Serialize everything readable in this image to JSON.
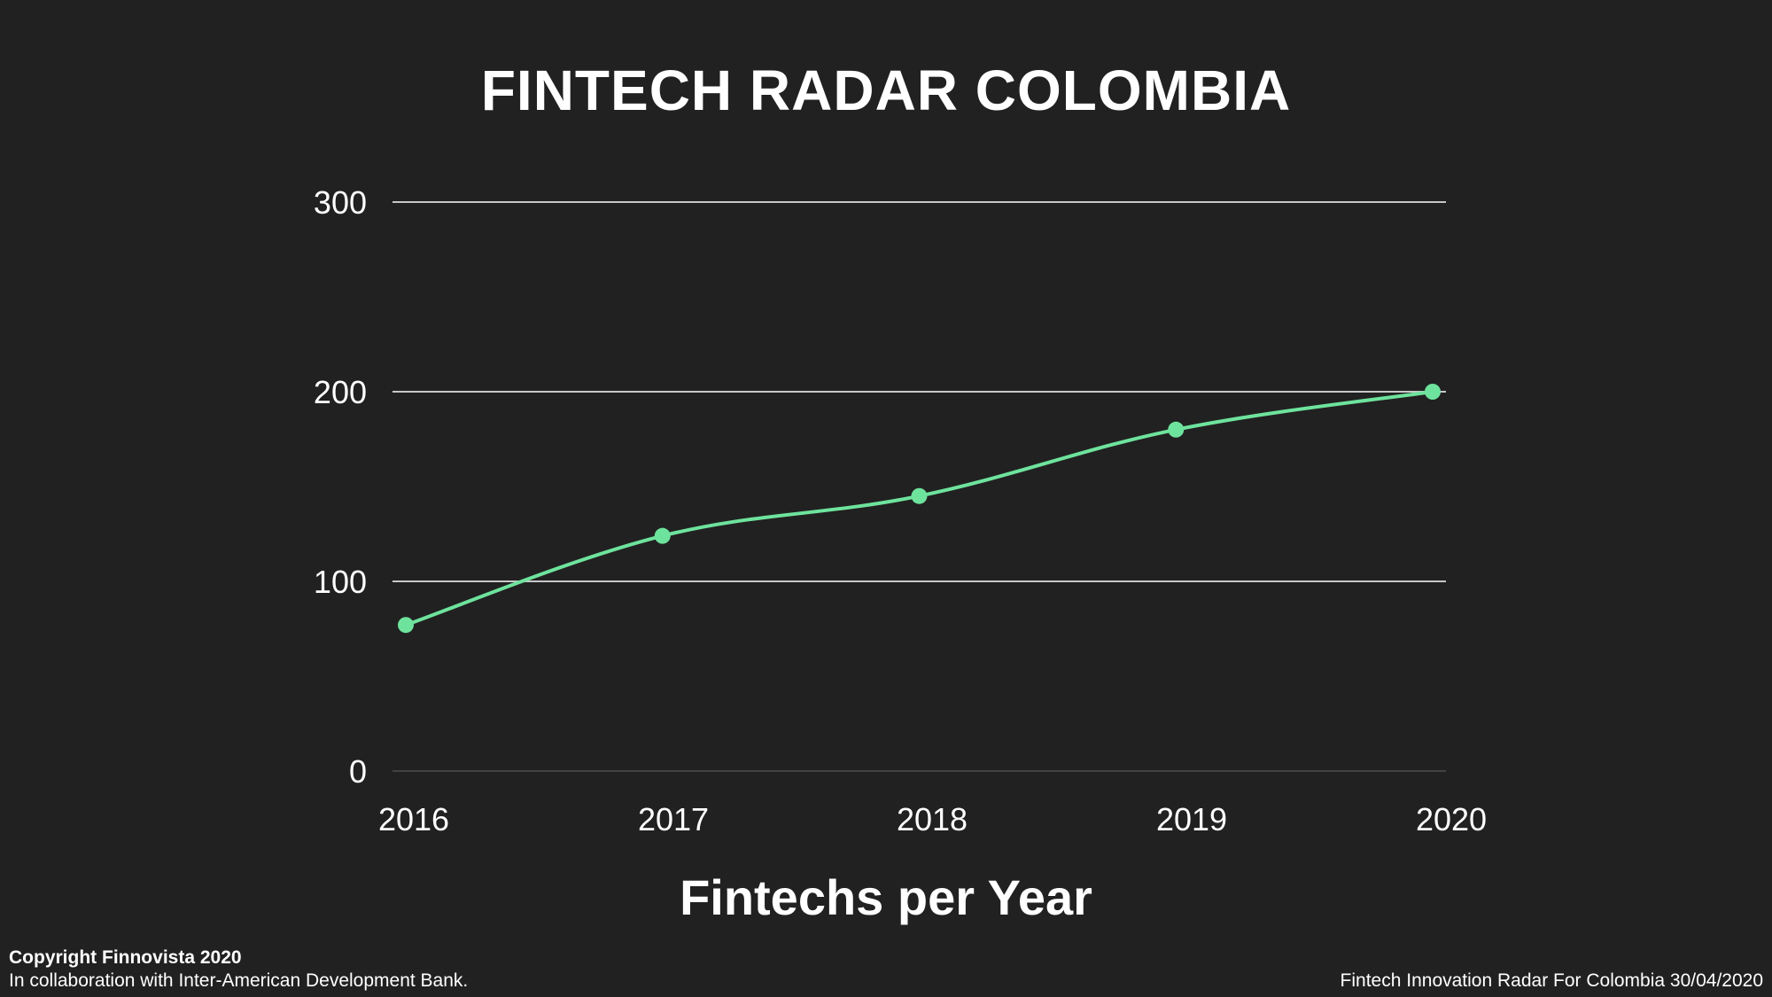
{
  "page": {
    "copyright": "Copyright Finnovista 2020",
    "collaboration": "In collaboration with Inter-American Development Bank.",
    "footer_right": "Fintech Innovation Radar For Colombia 30/04/2020"
  },
  "colors": {
    "background": "#212121",
    "series": "#6ee39d",
    "grid": "#d9d9d9",
    "text": "#ffffff"
  },
  "chart_data": {
    "type": "line",
    "title": "FINTECH RADAR COLOMBIA",
    "xlabel": "Fintechs per Year",
    "ylabel": "",
    "categories": [
      "2016",
      "2017",
      "2018",
      "2019",
      "2020"
    ],
    "series": [
      {
        "values": [
          77,
          124,
          145,
          180,
          200
        ]
      }
    ],
    "ylim": [
      0,
      300
    ],
    "yticks": [
      "0",
      "100",
      "200",
      "300"
    ],
    "grid": true,
    "legend": "none"
  }
}
